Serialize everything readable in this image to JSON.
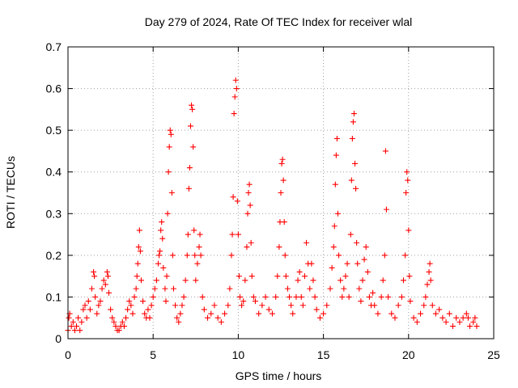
{
  "chart_data": {
    "type": "scatter",
    "title": "Day 279 of 2024, Rate Of TEC Index for receiver wlal",
    "xlabel": "GPS time / hours",
    "ylabel": "ROTI / TECUs",
    "xlim": [
      0,
      25
    ],
    "ylim": [
      0,
      0.7
    ],
    "xticks": [
      0,
      5,
      10,
      15,
      20,
      25
    ],
    "yticks": [
      0,
      0.1,
      0.2,
      0.3,
      0.4,
      0.5,
      0.6,
      0.7
    ],
    "xtick_labels": [
      "0",
      "5",
      "10",
      "15",
      "20",
      "25"
    ],
    "ytick_labels": [
      "0",
      "0.1",
      "0.2",
      "0.3",
      "0.4",
      "0.5",
      "0.6",
      "0.7"
    ],
    "grid": true,
    "marker": "+",
    "color": "#ff0000",
    "series": [
      {
        "name": "ROTI",
        "points": [
          [
            0.0,
            0.02
          ],
          [
            0.05,
            0.05
          ],
          [
            0.1,
            0.06
          ],
          [
            0.2,
            0.03
          ],
          [
            0.3,
            0.04
          ],
          [
            0.4,
            0.02
          ],
          [
            0.5,
            0.03
          ],
          [
            0.6,
            0.05
          ],
          [
            0.7,
            0.02
          ],
          [
            0.8,
            0.04
          ],
          [
            0.9,
            0.07
          ],
          [
            1.0,
            0.08
          ],
          [
            1.1,
            0.05
          ],
          [
            1.2,
            0.09
          ],
          [
            1.3,
            0.07
          ],
          [
            1.4,
            0.12
          ],
          [
            1.5,
            0.16
          ],
          [
            1.55,
            0.15
          ],
          [
            1.6,
            0.1
          ],
          [
            1.7,
            0.06
          ],
          [
            1.8,
            0.08
          ],
          [
            1.9,
            0.09
          ],
          [
            2.0,
            0.12
          ],
          [
            2.1,
            0.14
          ],
          [
            2.2,
            0.13
          ],
          [
            2.3,
            0.16
          ],
          [
            2.35,
            0.15
          ],
          [
            2.4,
            0.11
          ],
          [
            2.5,
            0.07
          ],
          [
            2.6,
            0.05
          ],
          [
            2.7,
            0.04
          ],
          [
            2.8,
            0.03
          ],
          [
            2.9,
            0.02
          ],
          [
            3.0,
            0.02
          ],
          [
            3.1,
            0.03
          ],
          [
            3.2,
            0.04
          ],
          [
            3.3,
            0.03
          ],
          [
            3.4,
            0.05
          ],
          [
            3.5,
            0.07
          ],
          [
            3.6,
            0.09
          ],
          [
            3.7,
            0.08
          ],
          [
            3.8,
            0.06
          ],
          [
            3.9,
            0.1
          ],
          [
            4.0,
            0.12
          ],
          [
            4.05,
            0.15
          ],
          [
            4.1,
            0.18
          ],
          [
            4.15,
            0.22
          ],
          [
            4.2,
            0.26
          ],
          [
            4.25,
            0.21
          ],
          [
            4.3,
            0.14
          ],
          [
            4.4,
            0.09
          ],
          [
            4.5,
            0.06
          ],
          [
            4.6,
            0.05
          ],
          [
            4.7,
            0.07
          ],
          [
            4.8,
            0.05
          ],
          [
            4.9,
            0.08
          ],
          [
            5.0,
            0.1
          ],
          [
            5.1,
            0.12
          ],
          [
            5.2,
            0.14
          ],
          [
            5.3,
            0.18
          ],
          [
            5.35,
            0.2
          ],
          [
            5.4,
            0.21
          ],
          [
            5.45,
            0.26
          ],
          [
            5.5,
            0.28
          ],
          [
            5.55,
            0.24
          ],
          [
            5.6,
            0.17
          ],
          [
            5.7,
            0.12
          ],
          [
            5.75,
            0.09
          ],
          [
            5.8,
            0.15
          ],
          [
            5.85,
            0.3
          ],
          [
            5.9,
            0.4
          ],
          [
            5.95,
            0.46
          ],
          [
            6.0,
            0.5
          ],
          [
            6.05,
            0.49
          ],
          [
            6.1,
            0.35
          ],
          [
            6.15,
            0.2
          ],
          [
            6.2,
            0.12
          ],
          [
            6.3,
            0.08
          ],
          [
            6.4,
            0.05
          ],
          [
            6.5,
            0.04
          ],
          [
            6.6,
            0.06
          ],
          [
            6.7,
            0.08
          ],
          [
            6.8,
            0.1
          ],
          [
            6.9,
            0.14
          ],
          [
            7.0,
            0.2
          ],
          [
            7.05,
            0.25
          ],
          [
            7.1,
            0.36
          ],
          [
            7.15,
            0.41
          ],
          [
            7.2,
            0.51
          ],
          [
            7.25,
            0.56
          ],
          [
            7.3,
            0.55
          ],
          [
            7.35,
            0.46
          ],
          [
            7.4,
            0.26
          ],
          [
            7.45,
            0.2
          ],
          [
            7.5,
            0.14
          ],
          [
            7.6,
            0.18
          ],
          [
            7.7,
            0.22
          ],
          [
            7.75,
            0.25
          ],
          [
            7.8,
            0.2
          ],
          [
            7.9,
            0.1
          ],
          [
            8.0,
            0.07
          ],
          [
            8.2,
            0.05
          ],
          [
            8.4,
            0.06
          ],
          [
            8.6,
            0.08
          ],
          [
            8.8,
            0.05
          ],
          [
            9.0,
            0.04
          ],
          [
            9.2,
            0.06
          ],
          [
            9.4,
            0.08
          ],
          [
            9.5,
            0.12
          ],
          [
            9.6,
            0.2
          ],
          [
            9.65,
            0.25
          ],
          [
            9.7,
            0.34
          ],
          [
            9.75,
            0.54
          ],
          [
            9.8,
            0.58
          ],
          [
            9.85,
            0.62
          ],
          [
            9.9,
            0.6
          ],
          [
            9.95,
            0.33
          ],
          [
            10.0,
            0.25
          ],
          [
            10.05,
            0.15
          ],
          [
            10.1,
            0.1
          ],
          [
            10.2,
            0.08
          ],
          [
            10.3,
            0.09
          ],
          [
            10.4,
            0.14
          ],
          [
            10.5,
            0.22
          ],
          [
            10.55,
            0.3
          ],
          [
            10.6,
            0.35
          ],
          [
            10.65,
            0.37
          ],
          [
            10.7,
            0.32
          ],
          [
            10.75,
            0.23
          ],
          [
            10.8,
            0.15
          ],
          [
            10.9,
            0.1
          ],
          [
            11.0,
            0.09
          ],
          [
            11.2,
            0.06
          ],
          [
            11.4,
            0.08
          ],
          [
            11.6,
            0.1
          ],
          [
            11.8,
            0.07
          ],
          [
            12.0,
            0.06
          ],
          [
            12.2,
            0.1
          ],
          [
            12.3,
            0.15
          ],
          [
            12.4,
            0.22
          ],
          [
            12.45,
            0.28
          ],
          [
            12.5,
            0.35
          ],
          [
            12.55,
            0.42
          ],
          [
            12.6,
            0.43
          ],
          [
            12.65,
            0.38
          ],
          [
            12.7,
            0.28
          ],
          [
            12.75,
            0.2
          ],
          [
            12.8,
            0.15
          ],
          [
            12.9,
            0.12
          ],
          [
            13.0,
            0.1
          ],
          [
            13.1,
            0.08
          ],
          [
            13.2,
            0.06
          ],
          [
            13.4,
            0.1
          ],
          [
            13.5,
            0.14
          ],
          [
            13.6,
            0.16
          ],
          [
            13.7,
            0.1
          ],
          [
            13.8,
            0.08
          ],
          [
            13.9,
            0.15
          ],
          [
            14.0,
            0.23
          ],
          [
            14.1,
            0.18
          ],
          [
            14.2,
            0.12
          ],
          [
            14.3,
            0.18
          ],
          [
            14.4,
            0.14
          ],
          [
            14.5,
            0.1
          ],
          [
            14.6,
            0.07
          ],
          [
            14.8,
            0.05
          ],
          [
            15.0,
            0.06
          ],
          [
            15.2,
            0.08
          ],
          [
            15.4,
            0.12
          ],
          [
            15.5,
            0.17
          ],
          [
            15.6,
            0.22
          ],
          [
            15.65,
            0.27
          ],
          [
            15.7,
            0.37
          ],
          [
            15.75,
            0.44
          ],
          [
            15.8,
            0.48
          ],
          [
            15.85,
            0.3
          ],
          [
            15.9,
            0.2
          ],
          [
            16.0,
            0.14
          ],
          [
            16.1,
            0.1
          ],
          [
            16.2,
            0.12
          ],
          [
            16.3,
            0.15
          ],
          [
            16.4,
            0.18
          ],
          [
            16.5,
            0.1
          ],
          [
            16.6,
            0.25
          ],
          [
            16.65,
            0.38
          ],
          [
            16.7,
            0.48
          ],
          [
            16.75,
            0.52
          ],
          [
            16.8,
            0.54
          ],
          [
            16.85,
            0.42
          ],
          [
            16.9,
            0.36
          ],
          [
            16.95,
            0.23
          ],
          [
            17.0,
            0.18
          ],
          [
            17.1,
            0.12
          ],
          [
            17.2,
            0.09
          ],
          [
            17.3,
            0.14
          ],
          [
            17.4,
            0.19
          ],
          [
            17.5,
            0.22
          ],
          [
            17.6,
            0.16
          ],
          [
            17.7,
            0.1
          ],
          [
            17.8,
            0.08
          ],
          [
            17.9,
            0.11
          ],
          [
            18.0,
            0.08
          ],
          [
            18.2,
            0.06
          ],
          [
            18.4,
            0.1
          ],
          [
            18.5,
            0.14
          ],
          [
            18.6,
            0.2
          ],
          [
            18.65,
            0.45
          ],
          [
            18.7,
            0.31
          ],
          [
            18.8,
            0.1
          ],
          [
            19.0,
            0.06
          ],
          [
            19.2,
            0.05
          ],
          [
            19.4,
            0.08
          ],
          [
            19.6,
            0.1
          ],
          [
            19.7,
            0.14
          ],
          [
            19.8,
            0.2
          ],
          [
            19.85,
            0.35
          ],
          [
            19.9,
            0.4
          ],
          [
            19.95,
            0.38
          ],
          [
            20.0,
            0.26
          ],
          [
            20.05,
            0.15
          ],
          [
            20.1,
            0.09
          ],
          [
            20.3,
            0.05
          ],
          [
            20.5,
            0.04
          ],
          [
            20.7,
            0.06
          ],
          [
            20.9,
            0.08
          ],
          [
            21.0,
            0.1
          ],
          [
            21.1,
            0.13
          ],
          [
            21.2,
            0.16
          ],
          [
            21.25,
            0.18
          ],
          [
            21.3,
            0.14
          ],
          [
            21.4,
            0.08
          ],
          [
            21.6,
            0.06
          ],
          [
            21.8,
            0.07
          ],
          [
            22.0,
            0.05
          ],
          [
            22.2,
            0.04
          ],
          [
            22.4,
            0.06
          ],
          [
            22.6,
            0.03
          ],
          [
            22.8,
            0.05
          ],
          [
            23.0,
            0.04
          ],
          [
            23.2,
            0.05
          ],
          [
            23.4,
            0.06
          ],
          [
            23.5,
            0.05
          ],
          [
            23.6,
            0.03
          ],
          [
            23.8,
            0.04
          ],
          [
            23.9,
            0.05
          ],
          [
            24.0,
            0.03
          ]
        ]
      }
    ]
  }
}
